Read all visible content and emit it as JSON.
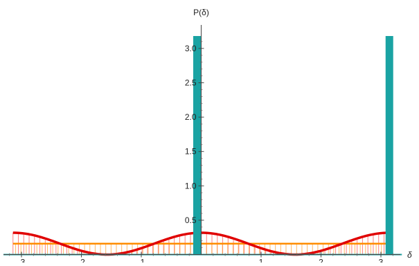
{
  "chart_data": {
    "type": "line",
    "title": "",
    "xlabel": "δ",
    "ylabel": "P(δ)",
    "xlim": [
      -3.35,
      3.35
    ],
    "ylim": [
      0,
      3.2
    ],
    "x_ticks": [
      -3,
      -2,
      -1,
      1,
      2,
      3
    ],
    "x_tick_labels": [
      "-3",
      "-2",
      "-1",
      "1",
      "2",
      "3"
    ],
    "y_ticks": [
      0.5,
      1.0,
      1.5,
      2.0,
      2.5,
      3.0
    ],
    "y_tick_labels": [
      "0.5",
      "1.0",
      "1.5",
      "2.0",
      "2.5",
      "3.0"
    ],
    "grid": false,
    "series": [
      {
        "color": "#e00000",
        "style": "curve with vertical fill lines to axis",
        "function": "0.159 * (1 + cos(2*delta))",
        "x": [
          -3.1416,
          -2.7489,
          -2.3562,
          -1.9635,
          -1.5708,
          -1.1781,
          -0.7854,
          -0.3927,
          0,
          0.3927,
          0.7854,
          1.1781,
          1.5708,
          1.9635,
          2.3562,
          2.7489,
          3.1416
        ],
        "values": [
          0.318,
          0.272,
          0.159,
          0.047,
          0.0,
          0.047,
          0.159,
          0.272,
          0.318,
          0.272,
          0.159,
          0.047,
          0.0,
          0.047,
          0.159,
          0.272,
          0.318
        ]
      },
      {
        "color": "#ff8c00",
        "style": "constant line with vertical fill lines to axis",
        "x": [
          -3.1416,
          3.1416
        ],
        "values": [
          0.159,
          0.159
        ]
      },
      {
        "color": "#1aa3a3",
        "style": "vertical spikes",
        "x": [
          0,
          3.1416
        ],
        "values": [
          3.2,
          3.2
        ]
      }
    ]
  }
}
